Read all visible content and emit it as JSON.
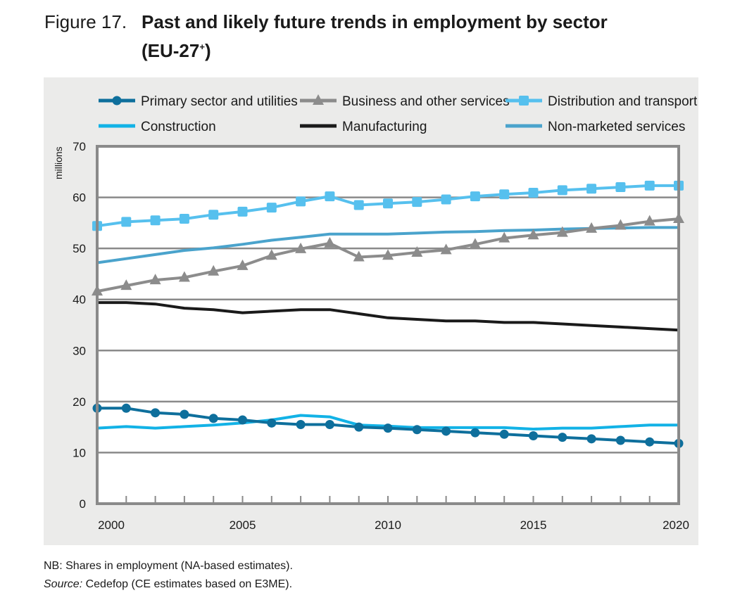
{
  "figure": {
    "number_label": "Figure 17.",
    "title_line1": "Past and likely future trends in employment by sector",
    "title_line2_prefix": "(EU-27",
    "title_line2_sup": "+",
    "title_line2_suffix": ")"
  },
  "notes": {
    "nb": "NB: Shares in employment (NA-based estimates).",
    "source_label": "Source:",
    "source_text": " Cedefop (CE estimates based on E3ME)."
  },
  "chart_data": {
    "type": "line",
    "title": "Past and likely future trends in employment by sector (EU-27+)",
    "xlabel": "",
    "ylabel": "millions",
    "ylim": [
      0,
      70
    ],
    "yticks": [
      0,
      10,
      20,
      30,
      40,
      50,
      60,
      70
    ],
    "xlim": [
      2000,
      2020
    ],
    "xtick_labels": [
      "2000",
      "2005",
      "2010",
      "2015",
      "2020"
    ],
    "grid": "horizontal",
    "legend_position": "top",
    "x": [
      2000,
      2001,
      2002,
      2003,
      2004,
      2005,
      2006,
      2007,
      2008,
      2009,
      2010,
      2011,
      2012,
      2013,
      2014,
      2015,
      2016,
      2017,
      2018,
      2019,
      2020
    ],
    "series": [
      {
        "name": "Primary sector and utilities",
        "color": "#0e6f9c",
        "marker": "circle",
        "values": [
          18.7,
          18.7,
          17.8,
          17.5,
          16.7,
          16.4,
          15.8,
          15.5,
          15.5,
          15.0,
          14.8,
          14.5,
          14.2,
          13.9,
          13.6,
          13.3,
          13.0,
          12.7,
          12.4,
          12.1,
          11.8
        ]
      },
      {
        "name": "Business and other services",
        "color": "#8c8c8c",
        "marker": "triangle",
        "values": [
          41.6,
          42.7,
          43.8,
          44.3,
          45.5,
          46.6,
          48.6,
          49.9,
          51.0,
          48.3,
          48.6,
          49.2,
          49.7,
          50.8,
          52.0,
          52.6,
          53.1,
          53.9,
          54.5,
          55.3,
          55.8
        ]
      },
      {
        "name": "Distribution and transport",
        "color": "#56c0ee",
        "marker": "square",
        "values": [
          54.4,
          55.2,
          55.5,
          55.8,
          56.6,
          57.2,
          58.0,
          59.2,
          60.2,
          58.5,
          58.8,
          59.1,
          59.6,
          60.2,
          60.6,
          60.9,
          61.4,
          61.7,
          62.0,
          62.3,
          62.3
        ]
      },
      {
        "name": "Construction",
        "color": "#12b2e6",
        "marker": "none",
        "values": [
          14.8,
          15.1,
          14.8,
          15.1,
          15.4,
          15.8,
          16.4,
          17.3,
          17.0,
          15.4,
          15.2,
          14.9,
          14.9,
          14.9,
          14.9,
          14.6,
          14.8,
          14.8,
          15.1,
          15.4,
          15.4
        ]
      },
      {
        "name": "Manufacturing",
        "color": "#1a1a1a",
        "marker": "none",
        "values": [
          39.4,
          39.4,
          39.1,
          38.3,
          38.0,
          37.4,
          37.7,
          38.0,
          38.0,
          37.2,
          36.4,
          36.1,
          35.8,
          35.8,
          35.5,
          35.5,
          35.2,
          34.9,
          34.6,
          34.3,
          34.0
        ]
      },
      {
        "name": "Non-marketed services",
        "color": "#4aa3cc",
        "marker": "none",
        "values": [
          47.2,
          48.0,
          48.8,
          49.6,
          50.1,
          50.8,
          51.6,
          52.2,
          52.8,
          52.8,
          52.8,
          53.0,
          53.2,
          53.3,
          53.5,
          53.6,
          53.8,
          53.9,
          54.0,
          54.1,
          54.1
        ]
      }
    ]
  }
}
